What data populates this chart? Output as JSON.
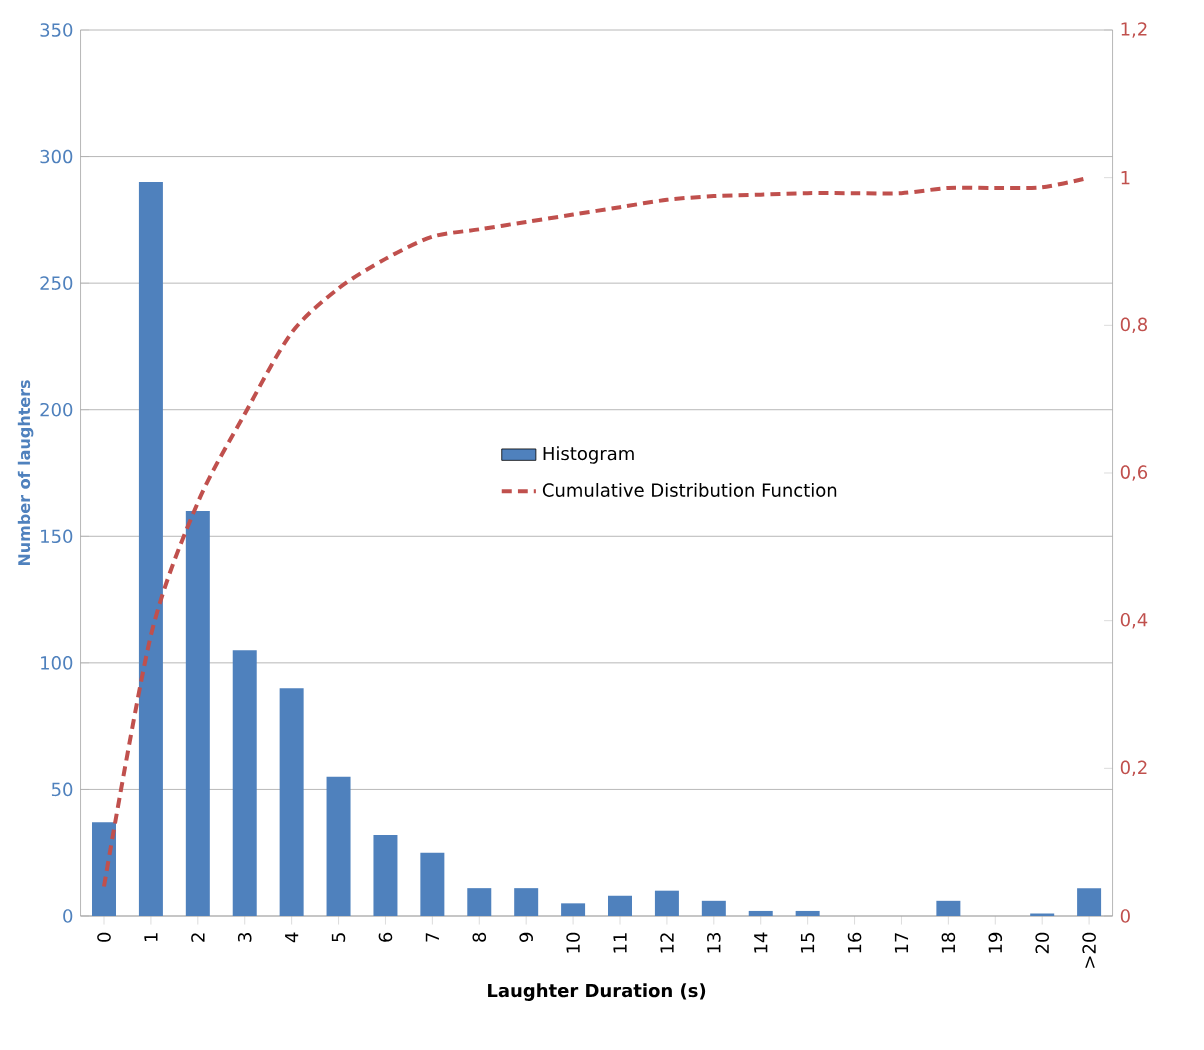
{
  "chart_data": {
    "type": "bar",
    "xlabel": "Laughter Duration (s)",
    "ylabel": "Number of laughters",
    "categories": [
      "0",
      "1",
      "2",
      "3",
      "4",
      "5",
      "6",
      "7",
      "8",
      "9",
      "10",
      "11",
      "12",
      "13",
      "14",
      "15",
      "16",
      "17",
      "18",
      "19",
      "20",
      ">20"
    ],
    "series": [
      {
        "name": "Histogram",
        "color": "#4f81bd",
        "values": [
          37,
          290,
          160,
          105,
          90,
          55,
          32,
          25,
          11,
          11,
          5,
          8,
          10,
          6,
          2,
          2,
          0,
          0,
          6,
          0,
          1,
          11
        ]
      },
      {
        "name": "Cumulative Distribution  Function",
        "type": "line",
        "axis": "y2",
        "color": "#c0504d",
        "line_style": "dashed",
        "values": [
          0.04,
          0.38,
          0.56,
          0.68,
          0.79,
          0.85,
          0.89,
          0.92,
          0.93,
          0.94,
          0.95,
          0.96,
          0.97,
          0.975,
          0.977,
          0.979,
          0.979,
          0.979,
          0.986,
          0.986,
          0.987,
          1.0
        ]
      }
    ],
    "ylim": [
      0,
      350
    ],
    "yticks": [
      0,
      50,
      100,
      150,
      200,
      250,
      300,
      350
    ],
    "y2lim": [
      0,
      1.2
    ],
    "y2ticks": [
      0,
      {
        "value": 0.2,
        "label": "0,2"
      },
      {
        "value": 0.4,
        "label": "0,4"
      },
      {
        "value": 0.6,
        "label": "0,6"
      },
      {
        "value": 0.8,
        "label": "0,8"
      },
      1,
      {
        "value": 1.2,
        "label": "1,2"
      }
    ],
    "grid": "y",
    "legend": "center"
  }
}
